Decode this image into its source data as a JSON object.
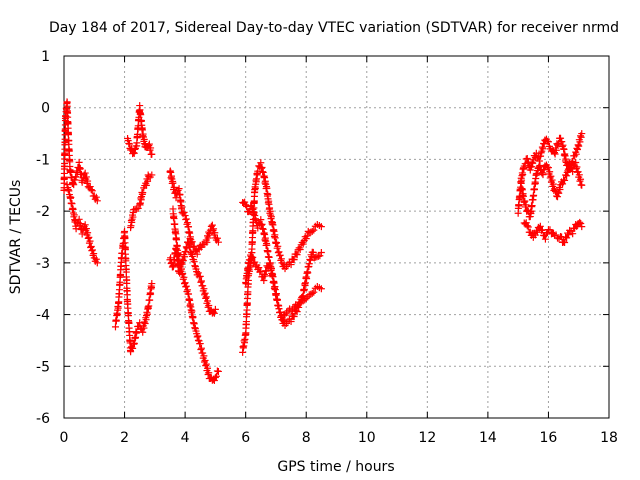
{
  "chart_data": {
    "type": "scatter",
    "title": "Day 184 of 2017, Sidereal Day-to-day VTEC variation (SDTVAR) for receiver nrmd",
    "xlabel": "GPS time / hours",
    "ylabel": "SDTVAR / TECUs",
    "xlim": [
      0,
      18
    ],
    "ylim": [
      -6,
      1
    ],
    "xticks": [
      0,
      2,
      4,
      6,
      8,
      10,
      12,
      14,
      16,
      18
    ],
    "yticks": [
      -6,
      -5,
      -4,
      -3,
      -2,
      -1,
      0,
      1
    ],
    "xtick_labels": [
      "0",
      "2",
      "4",
      "6",
      "8",
      "10",
      "12",
      "14",
      "16",
      "18"
    ],
    "ytick_labels": [
      "-6",
      "-5",
      "-4",
      "-3",
      "-2",
      "-1",
      "0",
      "1"
    ],
    "grid": true,
    "marker": "+",
    "series": [
      {
        "name": "SDTVAR",
        "color": "#ff0000",
        "segments": [
          [
            [
              0.0,
              -1.6
            ],
            [
              0.05,
              -0.2
            ],
            [
              0.1,
              0.1
            ],
            [
              0.15,
              -0.6
            ],
            [
              0.2,
              -1.2
            ],
            [
              0.3,
              -1.5
            ],
            [
              0.4,
              -1.3
            ],
            [
              0.5,
              -1.1
            ],
            [
              0.6,
              -1.4
            ],
            [
              0.7,
              -1.3
            ],
            [
              0.8,
              -1.5
            ],
            [
              0.9,
              -1.6
            ],
            [
              1.0,
              -1.7
            ],
            [
              1.1,
              -1.8
            ]
          ],
          [
            [
              0.1,
              -1.5
            ],
            [
              0.2,
              -1.7
            ],
            [
              0.3,
              -2.0
            ],
            [
              0.4,
              -2.3
            ],
            [
              0.5,
              -2.2
            ],
            [
              0.6,
              -2.4
            ],
            [
              0.7,
              -2.3
            ],
            [
              0.8,
              -2.5
            ],
            [
              0.9,
              -2.7
            ],
            [
              1.0,
              -2.9
            ],
            [
              1.1,
              -3.0
            ]
          ],
          [
            [
              1.7,
              -4.2
            ],
            [
              1.8,
              -3.8
            ],
            [
              1.9,
              -2.9
            ],
            [
              2.0,
              -2.4
            ],
            [
              2.1,
              -3.8
            ],
            [
              2.2,
              -4.7
            ],
            [
              2.3,
              -4.6
            ],
            [
              2.4,
              -4.3
            ],
            [
              2.5,
              -4.2
            ],
            [
              2.6,
              -4.3
            ],
            [
              2.7,
              -4.1
            ],
            [
              2.8,
              -3.8
            ],
            [
              2.9,
              -3.4
            ]
          ],
          [
            [
              2.1,
              -0.6
            ],
            [
              2.2,
              -0.8
            ],
            [
              2.3,
              -0.9
            ],
            [
              2.4,
              -0.7
            ],
            [
              2.5,
              0.0
            ],
            [
              2.6,
              -0.5
            ],
            [
              2.7,
              -0.8
            ],
            [
              2.8,
              -0.7
            ],
            [
              2.9,
              -0.9
            ]
          ],
          [
            [
              2.2,
              -2.3
            ],
            [
              2.3,
              -2.0
            ],
            [
              2.5,
              -1.9
            ],
            [
              2.6,
              -1.6
            ],
            [
              2.7,
              -1.5
            ],
            [
              2.8,
              -1.3
            ],
            [
              2.9,
              -1.3
            ]
          ],
          [
            [
              3.5,
              -1.2
            ],
            [
              3.6,
              -1.5
            ],
            [
              3.7,
              -1.7
            ],
            [
              3.8,
              -1.6
            ],
            [
              3.9,
              -2.0
            ],
            [
              4.0,
              -2.1
            ],
            [
              4.1,
              -2.3
            ],
            [
              4.2,
              -2.6
            ],
            [
              4.3,
              -2.7
            ],
            [
              4.4,
              -2.8
            ],
            [
              4.5,
              -2.7
            ],
            [
              4.6,
              -2.6
            ],
            [
              4.7,
              -2.6
            ],
            [
              4.8,
              -2.4
            ],
            [
              4.9,
              -2.3
            ],
            [
              5.0,
              -2.5
            ],
            [
              5.1,
              -2.6
            ]
          ],
          [
            [
              3.5,
              -2.9
            ],
            [
              3.6,
              -3.1
            ],
            [
              3.7,
              -2.7
            ],
            [
              3.8,
              -3.2
            ],
            [
              3.9,
              -3.0
            ],
            [
              4.0,
              -2.8
            ],
            [
              4.1,
              -2.6
            ],
            [
              4.2,
              -2.8
            ],
            [
              4.3,
              -3.0
            ],
            [
              4.4,
              -3.2
            ],
            [
              4.5,
              -3.3
            ],
            [
              4.6,
              -3.5
            ],
            [
              4.7,
              -3.7
            ],
            [
              4.8,
              -3.9
            ],
            [
              4.9,
              -4.0
            ],
            [
              5.0,
              -3.9
            ]
          ],
          [
            [
              3.6,
              -2.0
            ],
            [
              3.7,
              -2.5
            ],
            [
              3.8,
              -3.0
            ],
            [
              3.9,
              -3.2
            ],
            [
              4.0,
              -3.4
            ],
            [
              4.1,
              -3.6
            ],
            [
              4.2,
              -3.9
            ],
            [
              4.3,
              -4.2
            ],
            [
              4.4,
              -4.4
            ],
            [
              4.5,
              -4.6
            ],
            [
              4.6,
              -4.8
            ],
            [
              4.7,
              -5.0
            ],
            [
              4.8,
              -5.2
            ],
            [
              4.9,
              -5.3
            ],
            [
              5.0,
              -5.2
            ],
            [
              5.1,
              -5.1
            ]
          ],
          [
            [
              5.9,
              -4.7
            ],
            [
              6.0,
              -4.4
            ],
            [
              6.1,
              -3.2
            ],
            [
              6.2,
              -2.9
            ],
            [
              6.3,
              -3.0
            ],
            [
              6.4,
              -3.1
            ],
            [
              6.5,
              -3.2
            ],
            [
              6.6,
              -3.3
            ],
            [
              6.7,
              -3.1
            ],
            [
              6.8,
              -3.0
            ],
            [
              6.9,
              -3.3
            ],
            [
              7.0,
              -3.6
            ],
            [
              7.1,
              -3.9
            ],
            [
              7.2,
              -4.1
            ],
            [
              7.3,
              -4.0
            ],
            [
              7.5,
              -3.9
            ],
            [
              7.7,
              -3.8
            ],
            [
              7.9,
              -3.7
            ],
            [
              8.1,
              -3.6
            ],
            [
              8.3,
              -3.5
            ],
            [
              8.5,
              -3.5
            ]
          ],
          [
            [
              5.9,
              -1.8
            ],
            [
              6.0,
              -1.9
            ],
            [
              6.1,
              -2.0
            ],
            [
              6.2,
              -1.9
            ],
            [
              6.3,
              -2.1
            ],
            [
              6.4,
              -2.3
            ],
            [
              6.5,
              -2.2
            ],
            [
              6.6,
              -2.4
            ],
            [
              6.7,
              -2.7
            ],
            [
              6.8,
              -3.0
            ],
            [
              6.9,
              -3.3
            ],
            [
              7.0,
              -3.6
            ],
            [
              7.1,
              -3.9
            ],
            [
              7.2,
              -4.1
            ],
            [
              7.3,
              -4.2
            ],
            [
              7.5,
              -4.1
            ],
            [
              7.7,
              -3.9
            ],
            [
              7.9,
              -3.6
            ],
            [
              8.0,
              -3.3
            ],
            [
              8.1,
              -3.0
            ],
            [
              8.2,
              -2.8
            ],
            [
              8.3,
              -2.9
            ],
            [
              8.5,
              -2.8
            ]
          ],
          [
            [
              6.0,
              -3.4
            ],
            [
              6.1,
              -3.0
            ],
            [
              6.2,
              -2.8
            ],
            [
              6.3,
              -1.6
            ],
            [
              6.4,
              -1.2
            ],
            [
              6.5,
              -1.1
            ],
            [
              6.6,
              -1.3
            ],
            [
              6.7,
              -1.6
            ],
            [
              6.8,
              -2.0
            ],
            [
              6.9,
              -2.3
            ],
            [
              7.0,
              -2.6
            ],
            [
              7.1,
              -2.8
            ],
            [
              7.2,
              -3.0
            ],
            [
              7.3,
              -3.1
            ],
            [
              7.5,
              -3.0
            ],
            [
              7.7,
              -2.8
            ],
            [
              7.9,
              -2.6
            ],
            [
              8.1,
              -2.4
            ],
            [
              8.3,
              -2.3
            ],
            [
              8.5,
              -2.3
            ]
          ],
          [
            [
              15.0,
              -2.0
            ],
            [
              15.1,
              -1.4
            ],
            [
              15.2,
              -1.1
            ],
            [
              15.3,
              -1.0
            ],
            [
              15.4,
              -1.2
            ],
            [
              15.5,
              -1.0
            ],
            [
              15.6,
              -0.9
            ],
            [
              15.7,
              -1.0
            ],
            [
              15.8,
              -0.8
            ],
            [
              15.9,
              -0.6
            ],
            [
              16.0,
              -0.7
            ],
            [
              16.1,
              -0.8
            ],
            [
              16.2,
              -0.9
            ],
            [
              16.3,
              -0.7
            ],
            [
              16.4,
              -0.6
            ],
            [
              16.5,
              -0.8
            ],
            [
              16.6,
              -1.1
            ],
            [
              16.7,
              -1.2
            ],
            [
              16.8,
              -1.0
            ],
            [
              16.9,
              -0.9
            ],
            [
              17.0,
              -0.7
            ],
            [
              17.1,
              -0.5
            ]
          ],
          [
            [
              15.1,
              -1.5
            ],
            [
              15.2,
              -1.8
            ],
            [
              15.3,
              -2.0
            ],
            [
              15.4,
              -2.1
            ],
            [
              15.5,
              -1.7
            ],
            [
              15.6,
              -1.3
            ],
            [
              15.7,
              -1.1
            ],
            [
              15.8,
              -1.3
            ],
            [
              15.9,
              -1.1
            ],
            [
              16.0,
              -1.2
            ],
            [
              16.1,
              -1.4
            ],
            [
              16.2,
              -1.6
            ],
            [
              16.3,
              -1.7
            ],
            [
              16.4,
              -1.5
            ],
            [
              16.5,
              -1.4
            ],
            [
              16.6,
              -1.3
            ],
            [
              16.7,
              -1.1
            ],
            [
              16.8,
              -1.2
            ],
            [
              16.9,
              -1.1
            ],
            [
              17.0,
              -1.3
            ],
            [
              17.1,
              -1.5
            ]
          ],
          [
            [
              15.2,
              -2.2
            ],
            [
              15.3,
              -2.3
            ],
            [
              15.4,
              -2.4
            ],
            [
              15.5,
              -2.5
            ],
            [
              15.6,
              -2.4
            ],
            [
              15.7,
              -2.3
            ],
            [
              15.8,
              -2.4
            ],
            [
              15.9,
              -2.5
            ],
            [
              16.0,
              -2.4
            ],
            [
              16.1,
              -2.4
            ],
            [
              16.2,
              -2.5
            ],
            [
              16.3,
              -2.5
            ],
            [
              16.4,
              -2.5
            ],
            [
              16.5,
              -2.6
            ],
            [
              16.6,
              -2.5
            ],
            [
              16.7,
              -2.4
            ],
            [
              16.8,
              -2.4
            ],
            [
              16.9,
              -2.3
            ],
            [
              17.0,
              -2.2
            ],
            [
              17.1,
              -2.3
            ]
          ]
        ]
      }
    ]
  }
}
